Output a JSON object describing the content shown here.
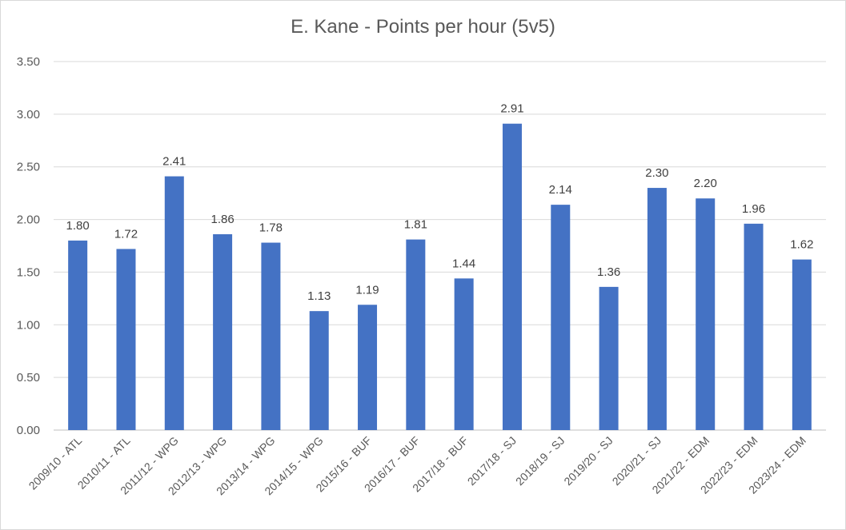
{
  "chart_data": {
    "type": "bar",
    "title": "E. Kane - Points per hour (5v5)",
    "xlabel": "",
    "ylabel": "",
    "ylim": [
      0,
      3.5
    ],
    "yticks": [
      "0.00",
      "0.50",
      "1.00",
      "1.50",
      "2.00",
      "2.50",
      "3.00",
      "3.50"
    ],
    "grid": true,
    "legend": "none",
    "bar_color": "#4472c4",
    "categories": [
      "2009/10 - ATL",
      "2010/11 - ATL",
      "2011/12 - WPG",
      "2012/13 - WPG",
      "2013/14 - WPG",
      "2014/15 - WPG",
      "2015/16 - BUF",
      "2016/17 - BUF",
      "2017/18 - BUF",
      "2017/18 - SJ",
      "2018/19 - SJ",
      "2019/20 - SJ",
      "2020/21 - SJ",
      "2021/22 - EDM",
      "2022/23 - EDM",
      "2023/24 - EDM"
    ],
    "values": [
      1.8,
      1.72,
      2.41,
      1.86,
      1.78,
      1.13,
      1.19,
      1.81,
      1.44,
      2.91,
      2.14,
      1.36,
      2.3,
      2.2,
      1.96,
      1.62
    ],
    "data_labels": [
      "1.80",
      "1.72",
      "2.41",
      "1.86",
      "1.78",
      "1.13",
      "1.19",
      "1.81",
      "1.44",
      "2.91",
      "2.14",
      "1.36",
      "2.30",
      "2.20",
      "1.96",
      "1.62"
    ]
  }
}
